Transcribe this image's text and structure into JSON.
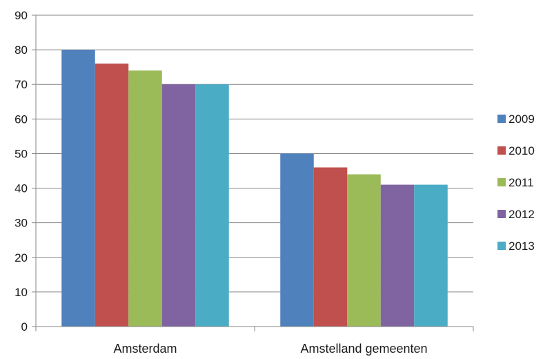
{
  "chart_data": {
    "type": "bar",
    "title": "",
    "xlabel": "",
    "ylabel": "",
    "categories": [
      "Amsterdam",
      "Amstelland gemeenten"
    ],
    "ylim": [
      0,
      90
    ],
    "yticks": [
      0,
      10,
      20,
      30,
      40,
      50,
      60,
      70,
      80,
      90
    ],
    "grid": true,
    "legend_position": "right",
    "series": [
      {
        "name": "2009",
        "color": "#4F81BD",
        "values": [
          80,
          50
        ]
      },
      {
        "name": "2010",
        "color": "#C0504D",
        "values": [
          76,
          46
        ]
      },
      {
        "name": "2011",
        "color": "#9BBB59",
        "values": [
          74,
          44
        ]
      },
      {
        "name": "2012",
        "color": "#8064A2",
        "values": [
          70,
          41
        ]
      },
      {
        "name": "2013",
        "color": "#4BACC6",
        "values": [
          70,
          41
        ]
      }
    ]
  }
}
